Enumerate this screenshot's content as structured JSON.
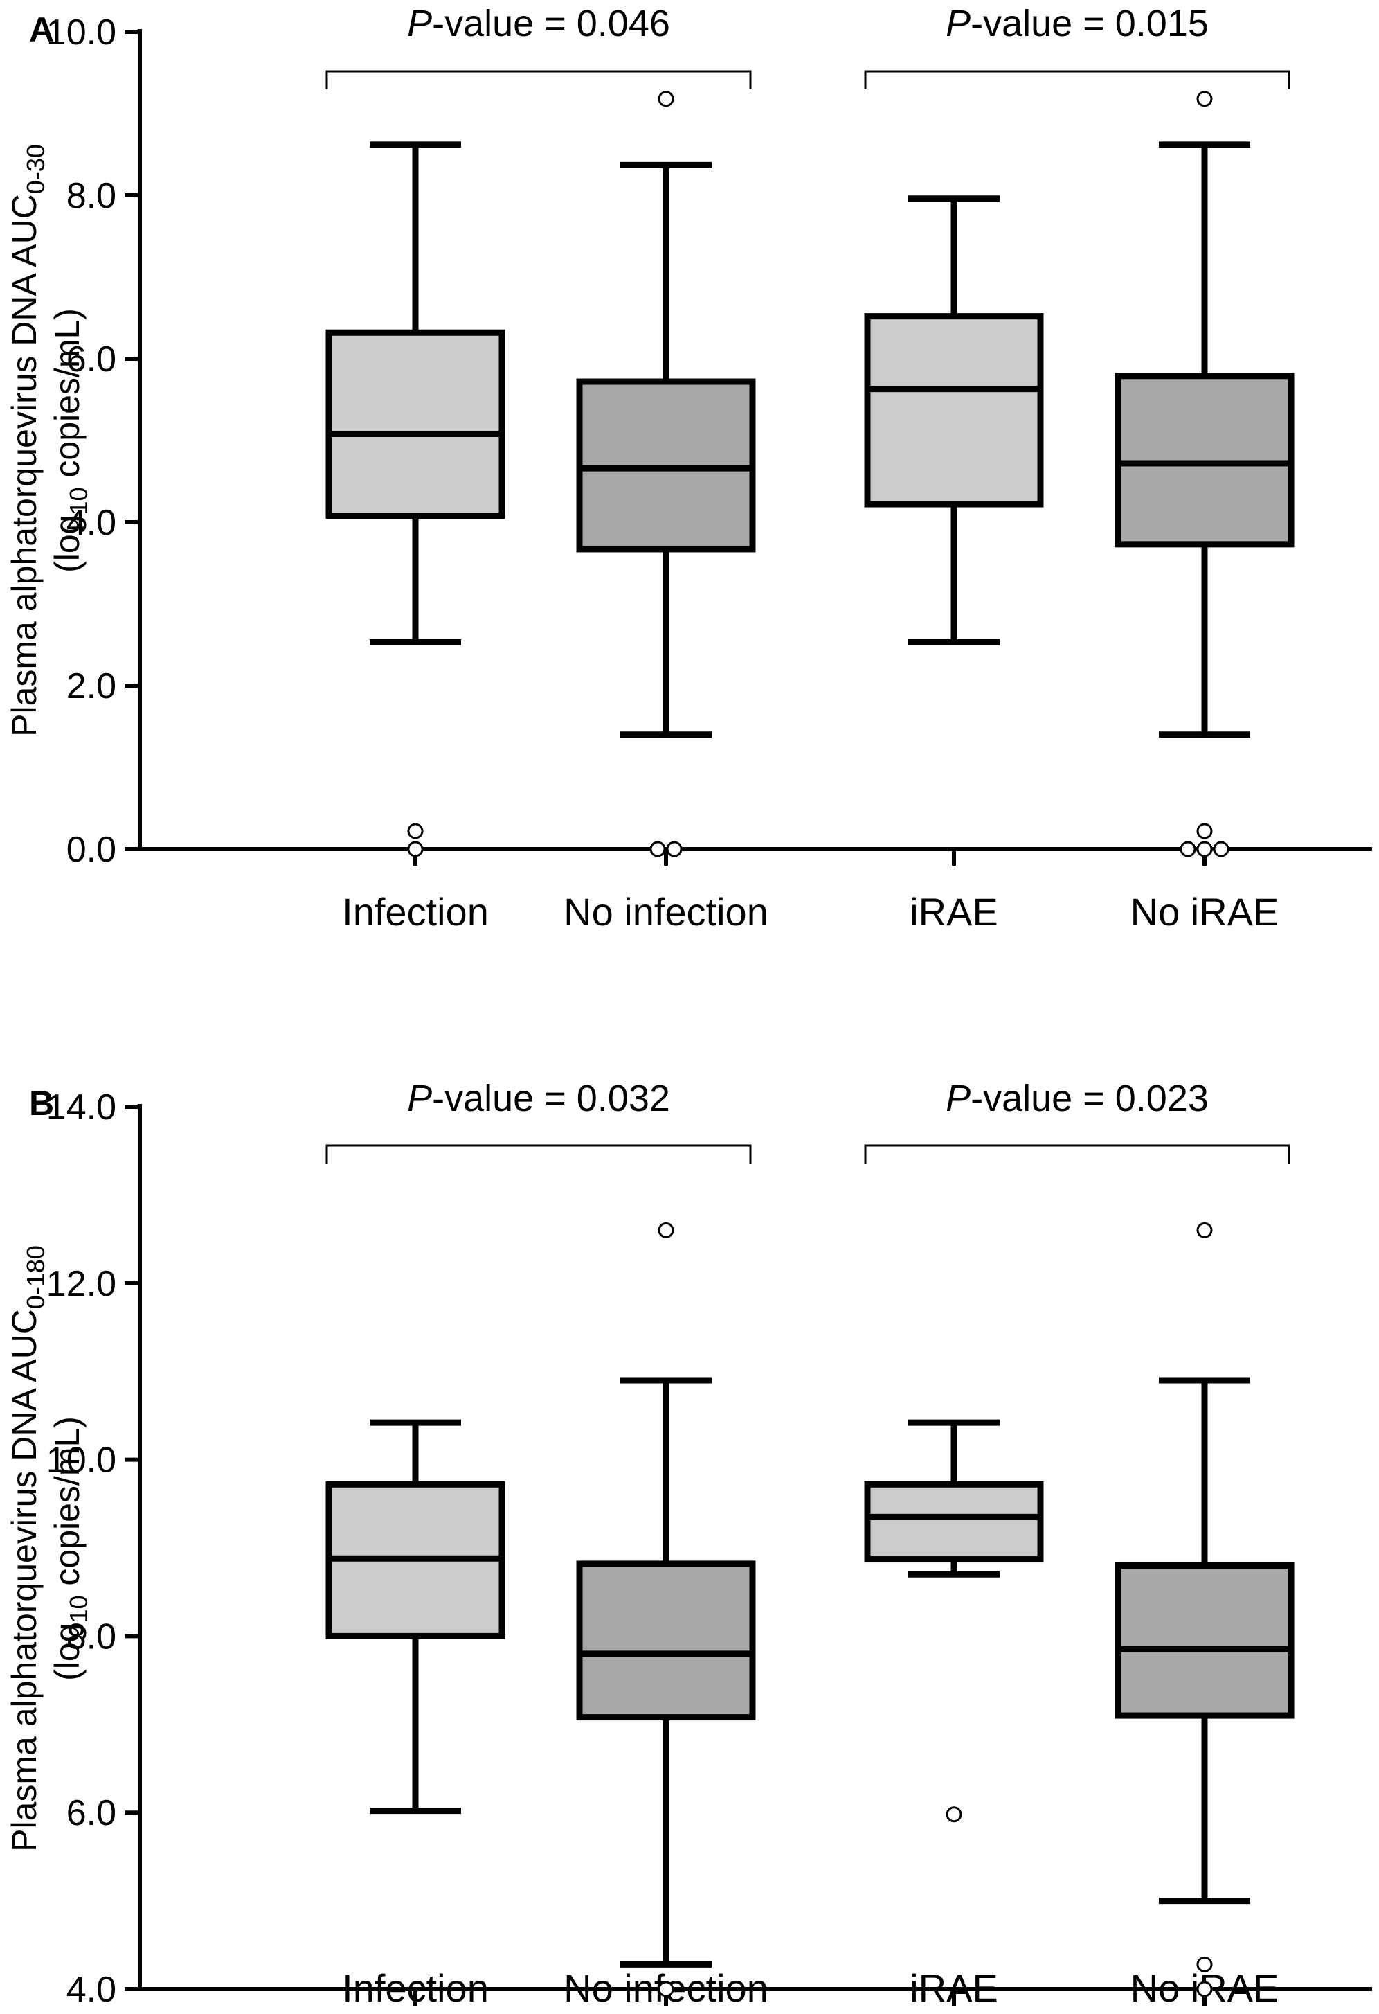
{
  "chart_data": [
    {
      "type": "box",
      "panel": "A",
      "ylabel_line1_main": "Plasma alphatorquevirus DNA AUC",
      "ylabel_line1_sub": "0-30",
      "ylabel_line2_pre": "(log",
      "ylabel_line2_sub": "10",
      "ylabel_line2_post": " copies/mL)",
      "ylim": [
        0,
        10
      ],
      "yticks": [
        "0.0",
        "2.0",
        "4.0",
        "6.0",
        "8.0",
        "10.0"
      ],
      "categories": [
        "Infection",
        "No infection",
        "iRAE",
        "No iRAE"
      ],
      "boxes": [
        {
          "category": "Infection",
          "whisker_low": 2.53,
          "q1": 4.08,
          "median": 5.08,
          "q3": 6.32,
          "whisker_high": 8.62,
          "outliers": [
            0.0,
            0.22
          ],
          "color": "#cccccc"
        },
        {
          "category": "No infection",
          "whisker_low": 1.4,
          "q1": 3.67,
          "median": 4.66,
          "q3": 5.72,
          "whisker_high": 8.37,
          "outliers": [
            9.18,
            0.0,
            0.0
          ],
          "color": "#a8a8a8"
        },
        {
          "category": "iRAE",
          "whisker_low": 2.53,
          "q1": 4.22,
          "median": 5.63,
          "q3": 6.52,
          "whisker_high": 7.96,
          "outliers": [],
          "color": "#cccccc"
        },
        {
          "category": "No iRAE",
          "whisker_low": 1.4,
          "q1": 3.73,
          "median": 4.72,
          "q3": 5.79,
          "whisker_high": 8.62,
          "outliers": [
            9.18,
            0.22,
            0.0,
            0.0,
            0.0
          ],
          "color": "#a8a8a8"
        }
      ],
      "comparisons": [
        {
          "from": "Infection",
          "to": "No infection",
          "label_italic": "P",
          "label_rest": "-value = 0.046"
        },
        {
          "from": "iRAE",
          "to": "No iRAE",
          "label_italic": "P",
          "label_rest": "-value = 0.015"
        }
      ]
    },
    {
      "type": "box",
      "panel": "B",
      "ylabel_line1_main": "Plasma alphatorquevirus DNA AUC",
      "ylabel_line1_sub": "0-180",
      "ylabel_line2_pre": "(log",
      "ylabel_line2_sub": "10",
      "ylabel_line2_post": " copies/mL)",
      "ylim": [
        4,
        14
      ],
      "yticks": [
        "4.0",
        "6.0",
        "8.0",
        "10.0",
        "12.0",
        "14.0"
      ],
      "categories": [
        "Infection",
        "No infection",
        "iRAE",
        "No iRAE"
      ],
      "boxes": [
        {
          "category": "Infection",
          "whisker_low": 6.02,
          "q1": 8.0,
          "median": 8.88,
          "q3": 9.72,
          "whisker_high": 10.42,
          "outliers": [],
          "color": "#cccccc"
        },
        {
          "category": "No infection",
          "whisker_low": 4.28,
          "q1": 7.08,
          "median": 7.8,
          "q3": 8.82,
          "whisker_high": 10.9,
          "outliers": [
            12.6,
            4.0
          ],
          "color": "#a8a8a8"
        },
        {
          "category": "iRAE",
          "whisker_low": 8.7,
          "q1": 8.87,
          "median": 9.35,
          "q3": 9.72,
          "whisker_high": 10.42,
          "outliers": [
            5.98
          ],
          "color": "#cccccc"
        },
        {
          "category": "No iRAE",
          "whisker_low": 5.0,
          "q1": 7.1,
          "median": 7.85,
          "q3": 8.8,
          "whisker_high": 10.9,
          "outliers": [
            12.6,
            4.28,
            4.0
          ],
          "color": "#a8a8a8"
        }
      ],
      "comparisons": [
        {
          "from": "Infection",
          "to": "No infection",
          "label_italic": "P",
          "label_rest": "-value = 0.032"
        },
        {
          "from": "iRAE",
          "to": "No iRAE",
          "label_italic": "P",
          "label_rest": "-value = 0.023"
        }
      ]
    }
  ]
}
